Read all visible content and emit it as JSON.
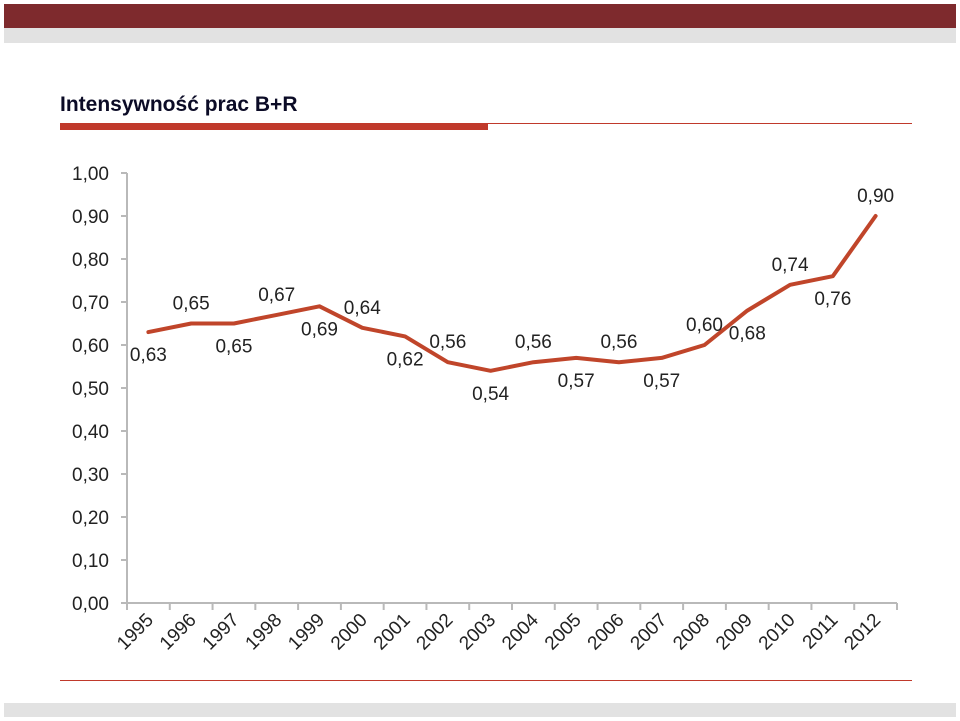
{
  "title": "Intensywność prac B+R",
  "colors": {
    "header_band": "#7e2a2d",
    "header_strip": "#e2e2e2",
    "accent": "#c0392b",
    "series_line": "#c0452a",
    "axis": "#b9b9b9",
    "text": "#222222"
  },
  "chart_data": {
    "type": "line",
    "title": "Intensywność prac B+R",
    "xlabel": "",
    "ylabel": "",
    "ylim": [
      0,
      1
    ],
    "y_ticks": [
      "0,00",
      "0,10",
      "0,20",
      "0,30",
      "0,40",
      "0,50",
      "0,60",
      "0,70",
      "0,80",
      "0,90",
      "1,00"
    ],
    "grid": false,
    "legend": "none",
    "categories": [
      "1995",
      "1996",
      "1997",
      "1998",
      "1999",
      "2000",
      "2001",
      "2002",
      "2003",
      "2004",
      "2005",
      "2006",
      "2007",
      "2008",
      "2009",
      "2010",
      "2011",
      "2012"
    ],
    "series": [
      {
        "values": [
          0.63,
          0.65,
          0.65,
          0.67,
          0.69,
          0.64,
          0.62,
          0.56,
          0.54,
          0.56,
          0.57,
          0.56,
          0.57,
          0.6,
          0.68,
          0.74,
          0.76,
          0.9
        ],
        "data_labels": [
          "0,63",
          "0,65",
          "0,65",
          "0,67",
          "0,69",
          "0,64",
          "0,62",
          "0,56",
          "0,54",
          "0,56",
          "0,57",
          "0,56",
          "0,57",
          "0,60",
          "0,68",
          "0,74",
          "0,76",
          "0,90"
        ],
        "label_position": [
          "below",
          "above",
          "below",
          "above",
          "below",
          "above",
          "below",
          "above",
          "below",
          "above",
          "below",
          "above",
          "below",
          "above",
          "below",
          "above",
          "below",
          "above"
        ]
      }
    ]
  }
}
